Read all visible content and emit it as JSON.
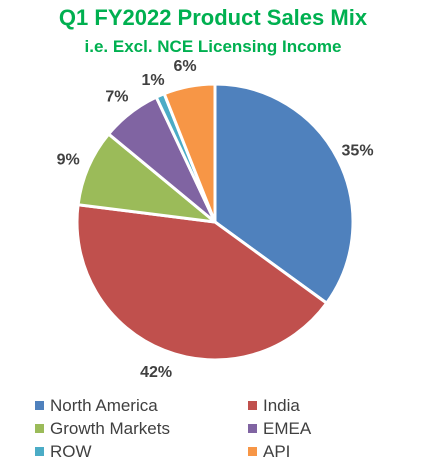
{
  "chart_data": {
    "type": "pie",
    "title": "Q1 FY2022 Product Sales Mix",
    "subtitle": "i.e. Excl. NCE Licensing Income",
    "categories": [
      "North America",
      "India",
      "Growth Markets",
      "EMEA",
      "ROW",
      "API"
    ],
    "values": [
      35,
      42,
      9,
      7,
      1,
      6
    ],
    "value_labels": [
      "35%",
      "42%",
      "9%",
      "7%",
      "1%",
      "6%"
    ],
    "legend_position": "bottom",
    "colors": [
      "#4F81BD",
      "#C0504D",
      "#9BBB59",
      "#8064A2",
      "#4BACC6",
      "#F79646"
    ],
    "title_color": "#00B050"
  }
}
